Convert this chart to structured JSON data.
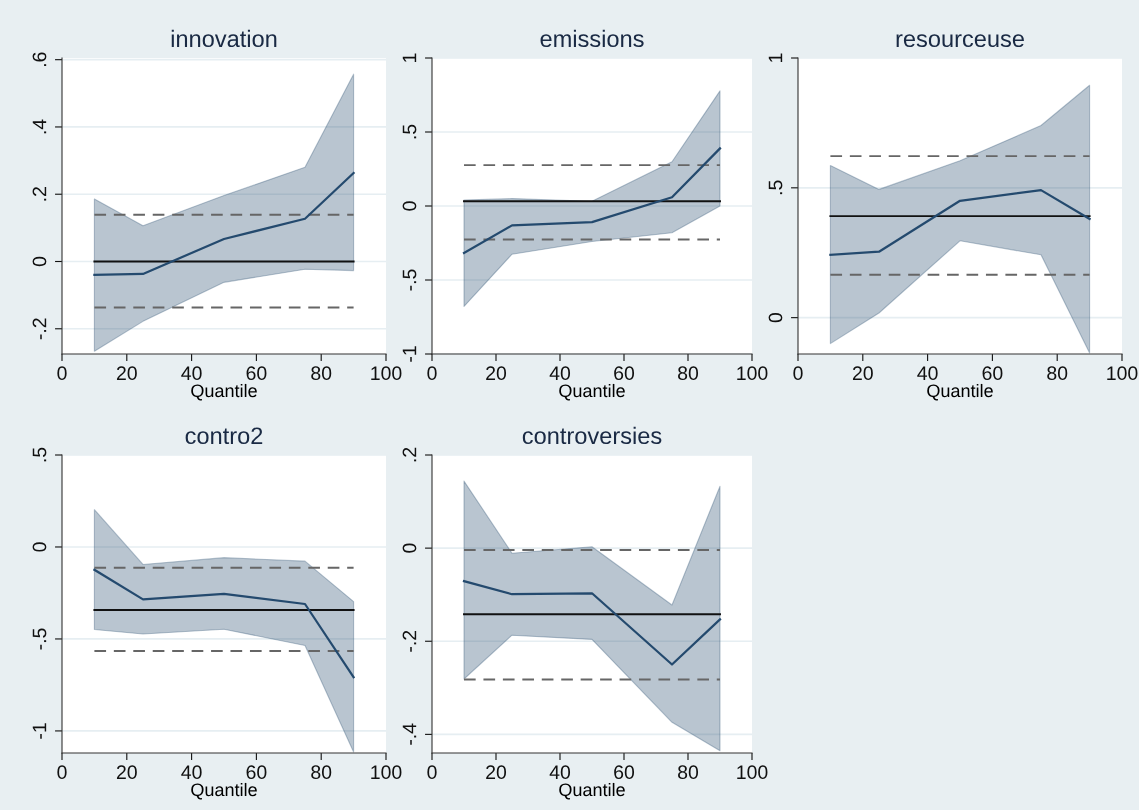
{
  "chart_data": [
    {
      "type": "line",
      "title": "innovation",
      "xlabel": "Quantile",
      "x": [
        10,
        25,
        50,
        75,
        90
      ],
      "xlim": [
        0,
        100
      ],
      "xticks": [
        0,
        20,
        40,
        60,
        80,
        100
      ],
      "ylim": [
        -0.275,
        0.605
      ],
      "yticks": [
        {
          "value": -0.2,
          "label": "-.2"
        },
        0,
        {
          "value": 0.2,
          "label": ".2"
        },
        {
          "value": 0.4,
          "label": ".4"
        },
        {
          "value": 0.6,
          "label": ".6"
        }
      ],
      "grid": "y",
      "line_style": "solid",
      "marker": "none",
      "series": [
        {
          "color": "#244a6e",
          "values": [
            -0.04,
            -0.037,
            0.067,
            0.127,
            0.263
          ],
          "lower": [
            -0.267,
            -0.178,
            -0.062,
            -0.023,
            -0.027
          ],
          "upper": [
            0.186,
            0.106,
            0.196,
            0.28,
            0.557
          ]
        }
      ],
      "ref_lines": [
        {
          "axis": "y",
          "value": 0,
          "color": "#111111",
          "line_style": "solid"
        },
        {
          "axis": "y",
          "value": 0.139,
          "color": "#666666",
          "line_style": "dashed"
        },
        {
          "axis": "y",
          "value": -0.137,
          "color": "#666666",
          "line_style": "dashed"
        }
      ]
    },
    {
      "type": "line",
      "title": "emissions",
      "xlabel": "Quantile",
      "x": [
        10,
        25,
        50,
        75,
        90
      ],
      "xlim": [
        0,
        100
      ],
      "xticks": [
        0,
        20,
        40,
        60,
        80,
        100
      ],
      "ylim": [
        -1,
        1
      ],
      "yticks": [
        -1,
        {
          "value": -0.5,
          "label": "-.5"
        },
        0,
        {
          "value": 0.5,
          "label": ".5"
        },
        1
      ],
      "grid": "y",
      "line_style": "solid",
      "marker": "none",
      "series": [
        {
          "color": "#244a6e",
          "values": [
            -0.317,
            -0.131,
            -0.109,
            0.059,
            0.389
          ],
          "lower": [
            -0.679,
            -0.326,
            -0.24,
            -0.181,
            0.0
          ],
          "upper": [
            0.041,
            0.05,
            0.032,
            0.299,
            0.778
          ]
        }
      ],
      "ref_lines": [
        {
          "axis": "y",
          "value": 0.032,
          "color": "#111111",
          "line_style": "solid"
        },
        {
          "axis": "y",
          "value": 0.276,
          "color": "#666666",
          "line_style": "dashed"
        },
        {
          "axis": "y",
          "value": -0.226,
          "color": "#666666",
          "line_style": "dashed"
        }
      ]
    },
    {
      "type": "line",
      "title": "resourceuse",
      "xlabel": "Quantile",
      "x": [
        10,
        25,
        50,
        75,
        90
      ],
      "xlim": [
        0,
        100
      ],
      "xticks": [
        0,
        20,
        40,
        60,
        80,
        100
      ],
      "ylim": [
        -0.14,
        1
      ],
      "yticks": [
        0,
        {
          "value": 0.5,
          "label": ".5"
        },
        1
      ],
      "grid": "y",
      "line_style": "solid",
      "marker": "none",
      "series": [
        {
          "color": "#244a6e",
          "values": [
            0.242,
            0.254,
            0.45,
            0.491,
            0.38
          ],
          "lower": [
            -0.1,
            0.018,
            0.296,
            0.242,
            -0.136
          ],
          "upper": [
            0.586,
            0.494,
            0.604,
            0.74,
            0.895
          ]
        }
      ],
      "ref_lines": [
        {
          "axis": "y",
          "value": 0.391,
          "color": "#111111",
          "line_style": "solid"
        },
        {
          "axis": "y",
          "value": 0.622,
          "color": "#666666",
          "line_style": "dashed"
        },
        {
          "axis": "y",
          "value": 0.165,
          "color": "#666666",
          "line_style": "dashed"
        }
      ]
    },
    {
      "type": "line",
      "title": "contro2",
      "xlabel": "Quantile",
      "x": [
        10,
        25,
        50,
        75,
        90
      ],
      "xlim": [
        0,
        100
      ],
      "xticks": [
        0,
        20,
        40,
        60,
        80,
        100
      ],
      "ylim": [
        -1.12,
        0.5
      ],
      "yticks": [
        -1,
        {
          "value": -0.5,
          "label": "-.5"
        },
        0,
        {
          "value": 0.5,
          "label": ".5"
        }
      ],
      "grid": "y",
      "line_style": "solid",
      "marker": "none",
      "series": [
        {
          "color": "#244a6e",
          "values": [
            -0.124,
            -0.285,
            -0.255,
            -0.31,
            -0.708
          ],
          "lower": [
            -0.449,
            -0.473,
            -0.447,
            -0.536,
            -1.115
          ],
          "upper": [
            0.203,
            -0.095,
            -0.058,
            -0.077,
            -0.297
          ]
        }
      ],
      "ref_lines": [
        {
          "axis": "y",
          "value": -0.343,
          "color": "#111111",
          "line_style": "solid"
        },
        {
          "axis": "y",
          "value": -0.113,
          "color": "#666666",
          "line_style": "dashed"
        },
        {
          "axis": "y",
          "value": -0.566,
          "color": "#666666",
          "line_style": "dashed"
        }
      ]
    },
    {
      "type": "line",
      "title": "controversies",
      "xlabel": "Quantile",
      "x": [
        10,
        25,
        50,
        75,
        90
      ],
      "xlim": [
        0,
        100
      ],
      "xticks": [
        0,
        20,
        40,
        60,
        80,
        100
      ],
      "ylim": [
        -0.44,
        0.2
      ],
      "yticks": [
        {
          "value": -0.4,
          "label": "-.4"
        },
        {
          "value": -0.2,
          "label": "-.2"
        },
        0,
        {
          "value": 0.2,
          "label": ".2"
        }
      ],
      "grid": "y",
      "line_style": "solid",
      "marker": "none",
      "series": [
        {
          "color": "#244a6e",
          "values": [
            -0.071,
            -0.099,
            -0.097,
            -0.25,
            -0.153
          ],
          "lower": [
            -0.281,
            -0.187,
            -0.196,
            -0.374,
            -0.435
          ],
          "upper": [
            0.144,
            -0.011,
            0.003,
            -0.122,
            0.133
          ]
        }
      ],
      "ref_lines": [
        {
          "axis": "y",
          "value": -0.142,
          "color": "#111111",
          "line_style": "solid"
        },
        {
          "axis": "y",
          "value": -0.004,
          "color": "#666666",
          "line_style": "dashed"
        },
        {
          "axis": "y",
          "value": -0.282,
          "color": "#666666",
          "line_style": "dashed"
        }
      ]
    }
  ]
}
